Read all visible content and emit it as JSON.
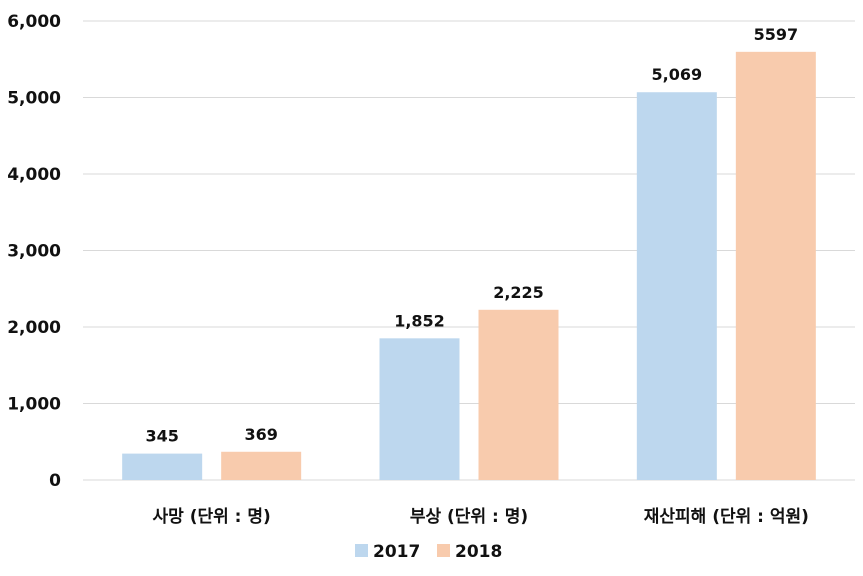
{
  "chart_data": {
    "type": "bar",
    "categories": [
      "사망 (단위 : 명)",
      "부상 (단위 : 명)",
      "재산피해 (단위 : 억원)"
    ],
    "series": [
      {
        "name": "2017",
        "values": [
          345,
          1852,
          5069
        ],
        "labels": [
          "345",
          "1,852",
          "5,069"
        ],
        "color": "#bdd7ee"
      },
      {
        "name": "2018",
        "values": [
          369,
          2225,
          5597
        ],
        "labels": [
          "369",
          "2,225",
          "5597"
        ],
        "color": "#f8cbad"
      }
    ],
    "title": "",
    "xlabel": "",
    "ylabel": "",
    "ylim": [
      0,
      6000
    ],
    "yticks": [
      0,
      1000,
      2000,
      3000,
      4000,
      5000,
      6000
    ],
    "ytick_labels": [
      "0",
      "1,000",
      "2,000",
      "3,000",
      "4,000",
      "5,000",
      "6,000"
    ],
    "grid": true,
    "grid_color": "#d9d9d9",
    "legend_position": "bottom"
  }
}
